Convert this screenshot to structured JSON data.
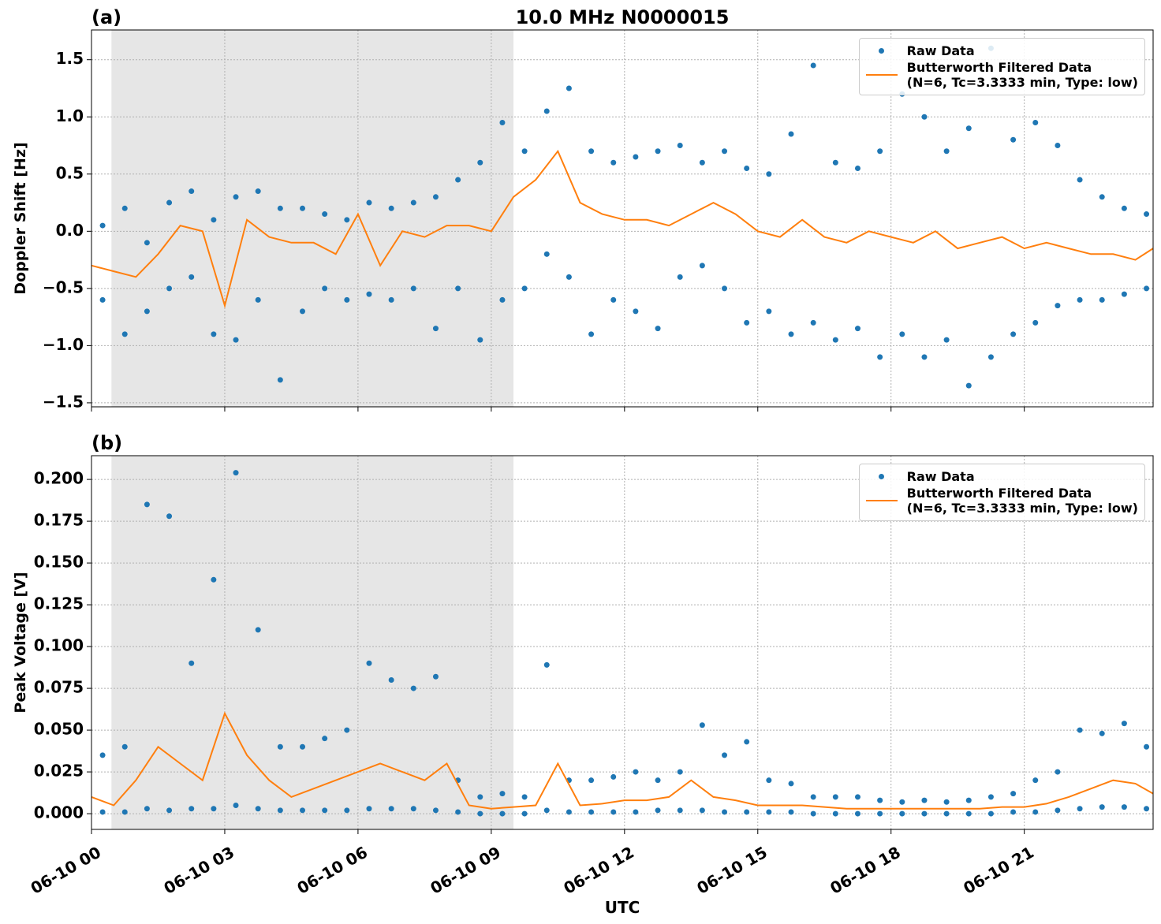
{
  "chart_data": [
    {
      "type": "line",
      "panel_label": "(a)",
      "title": "10.0 MHz N0000015",
      "ylabel": "Doppler Shift [Hz]",
      "xlim": [
        0,
        23.9
      ],
      "xticks": [
        0,
        3,
        6,
        9,
        12,
        15,
        18,
        21
      ],
      "ylim": [
        -1.535,
        1.76
      ],
      "yticks": [
        {
          "value": -1.5,
          "label": "−1.5"
        },
        {
          "value": -1.0,
          "label": "−1.0"
        },
        {
          "value": -0.5,
          "label": "−0.5"
        },
        {
          "value": 0.0,
          "label": "0.0"
        },
        {
          "value": 0.5,
          "label": "0.5"
        },
        {
          "value": 1.0,
          "label": "1.0"
        },
        1.5
      ],
      "grid": true,
      "legend": "upper right",
      "shade": [
        0.45,
        9.5
      ],
      "shade_color": "#e6e6e6",
      "series": [
        {
          "name": "Raw Data",
          "color": "#1f77b4",
          "style": "points",
          "x": [
            0.25,
            0.25,
            0.75,
            0.75,
            1.25,
            1.25,
            1.75,
            1.75,
            2.25,
            2.25,
            2.75,
            2.75,
            3.25,
            3.25,
            3.75,
            3.75,
            4.25,
            4.25,
            4.75,
            4.75,
            5.25,
            5.25,
            5.75,
            5.75,
            6.25,
            6.25,
            6.75,
            6.75,
            7.25,
            7.25,
            7.75,
            7.75,
            8.25,
            8.25,
            8.75,
            8.75,
            9.25,
            9.25,
            9.75,
            9.75,
            10.25,
            10.25,
            10.75,
            10.75,
            11.25,
            11.25,
            11.75,
            11.75,
            12.25,
            12.25,
            12.75,
            12.75,
            13.25,
            13.25,
            13.75,
            13.75,
            14.25,
            14.25,
            14.75,
            14.75,
            15.25,
            15.25,
            15.75,
            15.75,
            16.25,
            16.25,
            16.75,
            16.75,
            17.25,
            17.25,
            17.75,
            17.75,
            18.25,
            18.25,
            18.75,
            18.75,
            19.25,
            19.25,
            19.75,
            19.75,
            20.25,
            20.25,
            20.75,
            20.75,
            21.25,
            21.25,
            21.75,
            21.75,
            22.25,
            22.25,
            22.75,
            22.75,
            23.25,
            23.25,
            23.75,
            23.75
          ],
          "values": [
            0.05,
            -0.6,
            0.2,
            -0.9,
            -0.1,
            -0.7,
            0.25,
            -0.5,
            0.35,
            -0.4,
            0.1,
            -0.9,
            0.3,
            -0.95,
            0.35,
            -0.6,
            0.2,
            -1.3,
            0.2,
            -0.7,
            0.15,
            -0.5,
            0.1,
            -0.6,
            0.25,
            -0.55,
            0.2,
            -0.6,
            0.25,
            -0.5,
            0.3,
            -0.85,
            0.45,
            -0.5,
            0.6,
            -0.95,
            0.95,
            -0.6,
            0.7,
            -0.5,
            1.05,
            -0.2,
            1.25,
            -0.4,
            0.7,
            -0.9,
            0.6,
            -0.6,
            0.65,
            -0.7,
            0.7,
            -0.85,
            0.75,
            -0.4,
            0.6,
            -0.3,
            0.7,
            -0.5,
            0.55,
            -0.8,
            0.5,
            -0.7,
            0.85,
            -0.9,
            1.45,
            -0.8,
            0.6,
            -0.95,
            0.55,
            -0.85,
            0.7,
            -1.1,
            1.2,
            -0.9,
            1.0,
            -1.1,
            0.7,
            -0.95,
            0.9,
            -1.35,
            1.6,
            -1.1,
            0.8,
            -0.9,
            0.95,
            -0.8,
            0.75,
            -0.65,
            0.45,
            -0.6,
            0.3,
            -0.6,
            0.2,
            -0.55,
            0.15,
            -0.5
          ]
        },
        {
          "name": "Butterworth Filtered Data\n(N=6, Tc=3.3333 min, Type: low)",
          "color": "#ff7f0e",
          "style": "line",
          "x": [
            0,
            0.5,
            1,
            1.5,
            2,
            2.5,
            3,
            3.5,
            4,
            4.5,
            5,
            5.5,
            6,
            6.5,
            7,
            7.5,
            8,
            8.5,
            9,
            9.5,
            10,
            10.5,
            11,
            11.5,
            12,
            12.5,
            13,
            13.5,
            14,
            14.5,
            15,
            15.5,
            16,
            16.5,
            17,
            17.5,
            18,
            18.5,
            19,
            19.5,
            20,
            20.5,
            21,
            21.5,
            22,
            22.5,
            23,
            23.5,
            23.9
          ],
          "values": [
            -0.3,
            -0.35,
            -0.4,
            -0.2,
            0.05,
            0,
            -0.65,
            0.1,
            -0.05,
            -0.1,
            -0.1,
            -0.2,
            0.15,
            -0.3,
            0,
            -0.05,
            0.05,
            0.05,
            0.0,
            0.3,
            0.45,
            0.7,
            0.25,
            0.15,
            0.1,
            0.1,
            0.05,
            0.15,
            0.25,
            0.15,
            0.0,
            -0.05,
            0.1,
            -0.05,
            -0.1,
            0.0,
            -0.05,
            -0.1,
            0.0,
            -0.15,
            -0.1,
            -0.05,
            -0.15,
            -0.1,
            -0.15,
            -0.2,
            -0.2,
            -0.25,
            -0.15
          ]
        }
      ]
    },
    {
      "type": "line",
      "panel_label": "(b)",
      "ylabel": "Peak Voltage [V]",
      "xlabel": "UTC",
      "xlim": [
        0,
        23.9
      ],
      "xticks": [
        {
          "value": 0,
          "label": "06-10 00"
        },
        {
          "value": 3,
          "label": "06-10 03"
        },
        {
          "value": 6,
          "label": "06-10 06"
        },
        {
          "value": 9,
          "label": "06-10 09"
        },
        {
          "value": 12,
          "label": "06-10 12"
        },
        {
          "value": 15,
          "label": "06-10 15"
        },
        {
          "value": 18,
          "label": "06-10 18"
        },
        {
          "value": 21,
          "label": "06-10 21"
        }
      ],
      "ylim": [
        -0.0094,
        0.2142
      ],
      "yticks": [
        {
          "value": 0,
          "label": "0.000"
        },
        {
          "value": 0.025,
          "label": "0.025"
        },
        {
          "value": 0.05,
          "label": "0.050"
        },
        {
          "value": 0.075,
          "label": "0.075"
        },
        {
          "value": 0.1,
          "label": "0.100"
        },
        {
          "value": 0.125,
          "label": "0.125"
        },
        {
          "value": 0.15,
          "label": "0.150"
        },
        {
          "value": 0.175,
          "label": "0.175"
        },
        {
          "value": 0.2,
          "label": "0.200"
        }
      ],
      "grid": true,
      "legend": "upper right",
      "shade": [
        0.45,
        9.5
      ],
      "shade_color": "#e6e6e6",
      "series": [
        {
          "name": "Raw Data",
          "color": "#1f77b4",
          "style": "points",
          "x": [
            0.25,
            0.25,
            0.75,
            0.75,
            1.25,
            1.25,
            1.75,
            1.75,
            2.25,
            2.25,
            2.75,
            2.75,
            3.25,
            3.25,
            3.75,
            3.75,
            4.25,
            4.25,
            4.75,
            4.75,
            5.25,
            5.25,
            5.75,
            5.75,
            6.25,
            6.25,
            6.75,
            6.75,
            7.25,
            7.25,
            7.75,
            7.75,
            8.25,
            8.25,
            8.75,
            8.75,
            9.25,
            9.25,
            9.75,
            9.75,
            10.25,
            10.25,
            10.75,
            10.75,
            11.25,
            11.25,
            11.75,
            11.75,
            12.25,
            12.25,
            12.75,
            12.75,
            13.25,
            13.25,
            13.75,
            13.75,
            14.25,
            14.25,
            14.75,
            14.75,
            15.25,
            15.25,
            15.75,
            15.75,
            16.25,
            16.25,
            16.75,
            16.75,
            17.25,
            17.25,
            17.75,
            17.75,
            18.25,
            18.25,
            18.75,
            18.75,
            19.25,
            19.25,
            19.75,
            19.75,
            20.25,
            20.25,
            20.75,
            20.75,
            21.25,
            21.25,
            21.75,
            21.75,
            22.25,
            22.25,
            22.75,
            22.75,
            23.25,
            23.25,
            23.75,
            23.75
          ],
          "values": [
            0.035,
            0.001,
            0.04,
            0.001,
            0.185,
            0.003,
            0.178,
            0.002,
            0.09,
            0.003,
            0.14,
            0.003,
            0.204,
            0.005,
            0.11,
            0.003,
            0.04,
            0.002,
            0.04,
            0.002,
            0.045,
            0.002,
            0.05,
            0.002,
            0.09,
            0.003,
            0.08,
            0.003,
            0.075,
            0.003,
            0.082,
            0.002,
            0.02,
            0.001,
            0.01,
            0.0,
            0.012,
            0.0,
            0.01,
            0.0,
            0.089,
            0.002,
            0.02,
            0.001,
            0.02,
            0.001,
            0.022,
            0.001,
            0.025,
            0.001,
            0.02,
            0.002,
            0.025,
            0.002,
            0.053,
            0.002,
            0.035,
            0.001,
            0.043,
            0.001,
            0.02,
            0.001,
            0.018,
            0.001,
            0.01,
            0.0,
            0.01,
            0.0,
            0.01,
            0.0,
            0.008,
            0.0,
            0.007,
            0.0,
            0.008,
            0.0,
            0.007,
            0.0,
            0.008,
            0.0,
            0.01,
            0.0,
            0.012,
            0.001,
            0.02,
            0.001,
            0.025,
            0.002,
            0.05,
            0.003,
            0.048,
            0.004,
            0.054,
            0.004,
            0.04,
            0.003
          ]
        },
        {
          "name": "Butterworth Filtered Data\n(N=6, Tc=3.3333 min, Type: low)",
          "color": "#ff7f0e",
          "style": "line",
          "x": [
            0,
            0.5,
            1,
            1.5,
            2,
            2.5,
            3,
            3.5,
            4,
            4.5,
            5,
            5.5,
            6,
            6.5,
            7,
            7.5,
            8,
            8.5,
            9,
            9.5,
            10,
            10.5,
            11,
            11.5,
            12,
            12.5,
            13,
            13.5,
            14,
            14.5,
            15,
            15.5,
            16,
            16.5,
            17,
            17.5,
            18,
            18.5,
            19,
            19.5,
            20,
            20.5,
            21,
            21.5,
            22,
            22.5,
            23,
            23.5,
            23.9
          ],
          "values": [
            0.01,
            0.005,
            0.02,
            0.04,
            0.03,
            0.02,
            0.06,
            0.035,
            0.02,
            0.01,
            0.015,
            0.02,
            0.025,
            0.03,
            0.025,
            0.02,
            0.03,
            0.005,
            0.003,
            0.004,
            0.005,
            0.03,
            0.005,
            0.006,
            0.008,
            0.008,
            0.01,
            0.02,
            0.01,
            0.008,
            0.005,
            0.005,
            0.005,
            0.004,
            0.003,
            0.003,
            0.003,
            0.003,
            0.003,
            0.003,
            0.003,
            0.004,
            0.004,
            0.006,
            0.01,
            0.015,
            0.02,
            0.018,
            0.012
          ]
        }
      ]
    }
  ]
}
